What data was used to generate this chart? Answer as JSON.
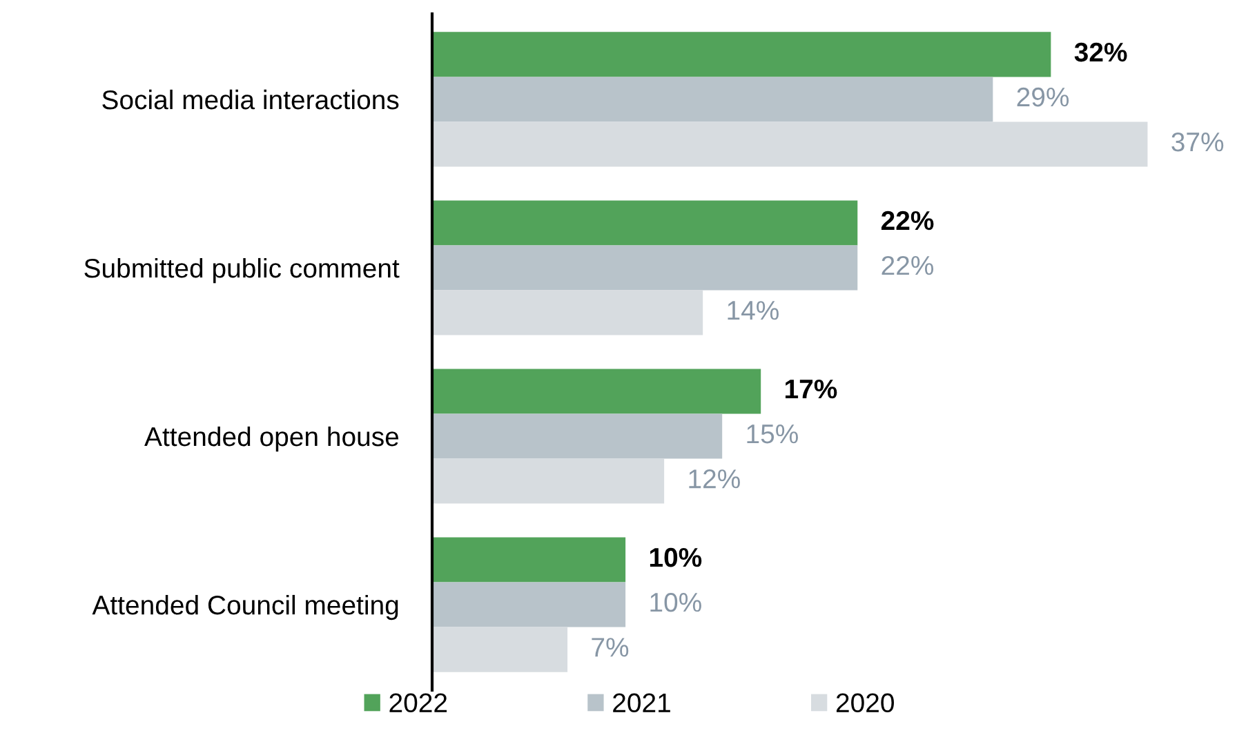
{
  "chart_data": {
    "type": "bar",
    "orientation": "horizontal",
    "categories": [
      "Social media interactions",
      "Submitted public comment",
      "Attended open house",
      "Attended Council meeting"
    ],
    "series": [
      {
        "name": "2022",
        "color": "#52a35a",
        "values": [
          32,
          22,
          17,
          10
        ],
        "value_labels": [
          "32%",
          "22%",
          "17%",
          "10%"
        ]
      },
      {
        "name": "2021",
        "color": "#b8c3ca",
        "values": [
          29,
          22,
          15,
          10
        ],
        "value_labels": [
          "29%",
          "22%",
          "15%",
          "10%"
        ]
      },
      {
        "name": "2020",
        "color": "#d7dce0",
        "values": [
          37,
          14,
          12,
          7
        ],
        "value_labels": [
          "37%",
          "14%",
          "12%",
          "7%"
        ]
      }
    ],
    "legend": "bottom",
    "tick_labels": "y"
  }
}
